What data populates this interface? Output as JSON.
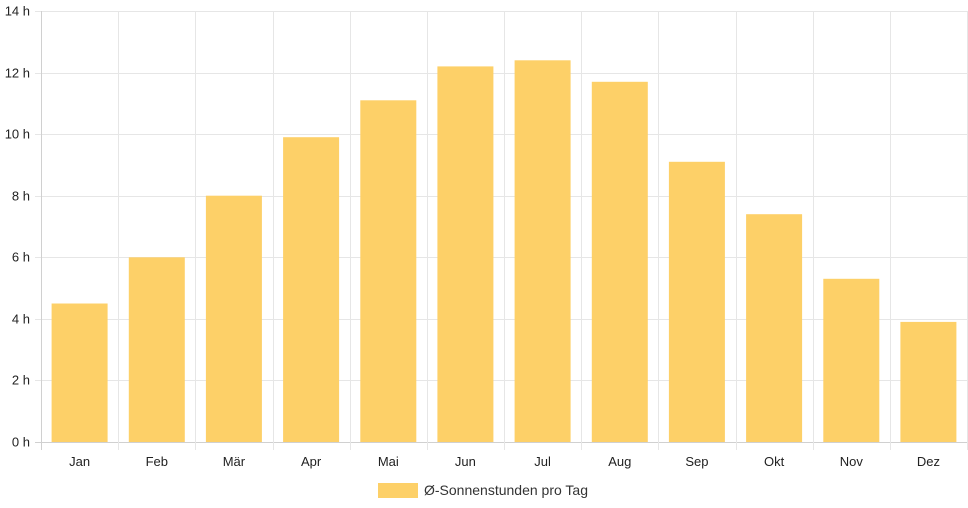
{
  "chart_data": {
    "type": "bar",
    "categories": [
      "Jan",
      "Feb",
      "Mär",
      "Apr",
      "Mai",
      "Jun",
      "Jul",
      "Aug",
      "Sep",
      "Okt",
      "Nov",
      "Dez"
    ],
    "series": [
      {
        "name": "Ø-Sonnenstunden pro Tag",
        "values": [
          4.5,
          6.0,
          8.0,
          9.9,
          11.1,
          12.2,
          12.4,
          11.7,
          9.1,
          7.4,
          5.3,
          3.9
        ],
        "color": "#fdd068"
      }
    ],
    "y_ticks": [
      "0 h",
      "2 h",
      "4 h",
      "6 h",
      "8 h",
      "10 h",
      "12 h",
      "14 h"
    ],
    "ylim": [
      0,
      14
    ],
    "grid": true,
    "legend": "bottom-center"
  }
}
